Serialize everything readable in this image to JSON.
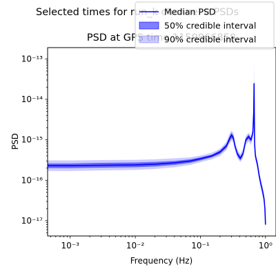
{
  "figure": {
    "suptitle": "Selected times for run_k channel 0 PSDs"
  },
  "chart_data": {
    "type": "line",
    "title": "PSD at GPS time 1159866858",
    "xlabel": "Frequency (Hz)",
    "ylabel": "PSD",
    "xscale": "log",
    "yscale": "log",
    "xlim": [
      0.00045,
      1.45
    ],
    "ylim": [
      4.2e-18,
      1.9e-13
    ],
    "grid": false,
    "legend_position": "upper-right",
    "x_ticks": [
      {
        "value": 0.001,
        "label": "10⁻³"
      },
      {
        "value": 0.01,
        "label": "10⁻²"
      },
      {
        "value": 0.1,
        "label": "10⁻¹"
      },
      {
        "value": 1,
        "label": "10⁰"
      }
    ],
    "y_ticks": [
      {
        "value": 1e-17,
        "label": "10⁻¹⁷"
      },
      {
        "value": 1e-16,
        "label": "10⁻¹⁶"
      },
      {
        "value": 1e-15,
        "label": "10⁻¹⁵"
      },
      {
        "value": 1e-14,
        "label": "10⁻¹⁴"
      },
      {
        "value": 1e-13,
        "label": "10⁻¹³"
      }
    ],
    "series": [
      {
        "name": "Median PSD",
        "kind": "line",
        "color": "#0000ff",
        "x": [
          0.00045,
          0.001,
          0.003,
          0.01,
          0.02,
          0.04,
          0.07,
          0.1,
          0.15,
          0.2,
          0.25,
          0.28,
          0.3,
          0.32,
          0.34,
          0.37,
          0.41,
          0.45,
          0.5,
          0.55,
          0.6,
          0.64,
          0.66,
          0.668,
          0.672,
          0.68,
          0.7,
          0.75,
          0.8,
          0.85,
          0.9,
          0.95,
          0.98,
          1.0
        ],
        "y": [
          2.3e-16,
          2.3e-16,
          2.35e-16,
          2.4e-16,
          2.5e-16,
          2.7e-16,
          3e-16,
          3.4e-16,
          4e-16,
          5e-16,
          7e-16,
          1.05e-15,
          1.3e-15,
          1.15e-15,
          7e-16,
          4.5e-16,
          3.5e-16,
          4.5e-16,
          1e-15,
          1.2e-15,
          1e-15,
          1.5e-15,
          5e-15,
          2.5e-14,
          6e-15,
          8e-16,
          4e-16,
          2.5e-16,
          1.3e-16,
          8e-17,
          5.5e-17,
          3.5e-17,
          2e-17,
          8e-18
        ]
      },
      {
        "name": "50% credible interval",
        "kind": "band",
        "color": "#0000ff",
        "opacity": 0.5,
        "x": [
          0.00045,
          0.001,
          0.003,
          0.01,
          0.02,
          0.04,
          0.07,
          0.1,
          0.15,
          0.2,
          0.25,
          0.28,
          0.3,
          0.32,
          0.34,
          0.37,
          0.41,
          0.45,
          0.5,
          0.55,
          0.6,
          0.64,
          0.66,
          0.668,
          0.672,
          0.68,
          0.7,
          0.75,
          0.8,
          0.85,
          0.9,
          0.95,
          0.98,
          1.0
        ],
        "lower": [
          2e-16,
          2e-16,
          2.05e-16,
          2.1e-16,
          2.2e-16,
          2.4e-16,
          2.7e-16,
          3.1e-16,
          3.7e-16,
          4.5e-16,
          6.2e-16,
          9e-16,
          1.1e-15,
          1e-15,
          6.2e-16,
          4e-16,
          3.1e-16,
          4e-16,
          9e-16,
          1.05e-15,
          9e-16,
          1.3e-15,
          4e-15,
          2e-14,
          5e-15,
          7e-16,
          3.6e-16,
          2.2e-16,
          1.15e-16,
          7e-17,
          4.8e-17,
          3e-17,
          1.7e-17,
          7e-18
        ],
        "upper": [
          2.6e-16,
          2.6e-16,
          2.7e-16,
          2.75e-16,
          2.85e-16,
          3e-16,
          3.3e-16,
          3.7e-16,
          4.3e-16,
          5.5e-16,
          7.8e-16,
          1.2e-15,
          1.5e-15,
          1.3e-15,
          7.8e-16,
          5e-16,
          3.9e-16,
          5e-16,
          1.1e-15,
          1.35e-15,
          1.1e-15,
          1.7e-15,
          6e-15,
          3e-14,
          7e-15,
          9e-16,
          4.4e-16,
          2.8e-16,
          1.45e-16,
          9e-17,
          6.2e-17,
          4e-17,
          2.3e-17,
          9.5e-18
        ]
      },
      {
        "name": "90% credible interval",
        "kind": "band",
        "color": "#0000ff",
        "opacity": 0.2,
        "x": [
          0.00045,
          0.001,
          0.003,
          0.01,
          0.02,
          0.04,
          0.07,
          0.1,
          0.15,
          0.2,
          0.25,
          0.28,
          0.3,
          0.32,
          0.34,
          0.37,
          0.41,
          0.45,
          0.5,
          0.55,
          0.6,
          0.64,
          0.66,
          0.668,
          0.672,
          0.68,
          0.7,
          0.75,
          0.8,
          0.85,
          0.9,
          0.95,
          0.98,
          1.0
        ],
        "lower": [
          1.7e-16,
          1.7e-16,
          1.75e-16,
          1.8e-16,
          1.9e-16,
          2.1e-16,
          2.4e-16,
          2.8e-16,
          3.3e-16,
          4e-16,
          5.5e-16,
          8e-16,
          9.5e-16,
          8.5e-16,
          5.5e-16,
          3.5e-16,
          2.8e-16,
          3.5e-16,
          7.5e-16,
          9e-16,
          7.5e-16,
          1.1e-15,
          3e-15,
          1.5e-14,
          4e-15,
          6e-16,
          3.2e-16,
          1.9e-16,
          1e-16,
          6e-17,
          4e-17,
          2.6e-17,
          1.4e-17,
          6e-18
        ],
        "upper": [
          3.1e-16,
          3.1e-16,
          3.15e-16,
          3.2e-16,
          3.3e-16,
          3.5e-16,
          3.7e-16,
          4.1e-16,
          4.8e-16,
          6e-16,
          8.8e-16,
          1.4e-15,
          1.7e-15,
          1.5e-15,
          9e-16,
          5.8e-16,
          4.5e-16,
          5.8e-16,
          1.25e-15,
          1.5e-15,
          1.3e-15,
          2e-15,
          8e-15,
          1e-13,
          9e-15,
          1.1e-15,
          5e-16,
          3.2e-16,
          1.7e-16,
          1.05e-16,
          7.2e-17,
          4.6e-17,
          2.7e-17,
          1.2e-17
        ]
      }
    ]
  }
}
